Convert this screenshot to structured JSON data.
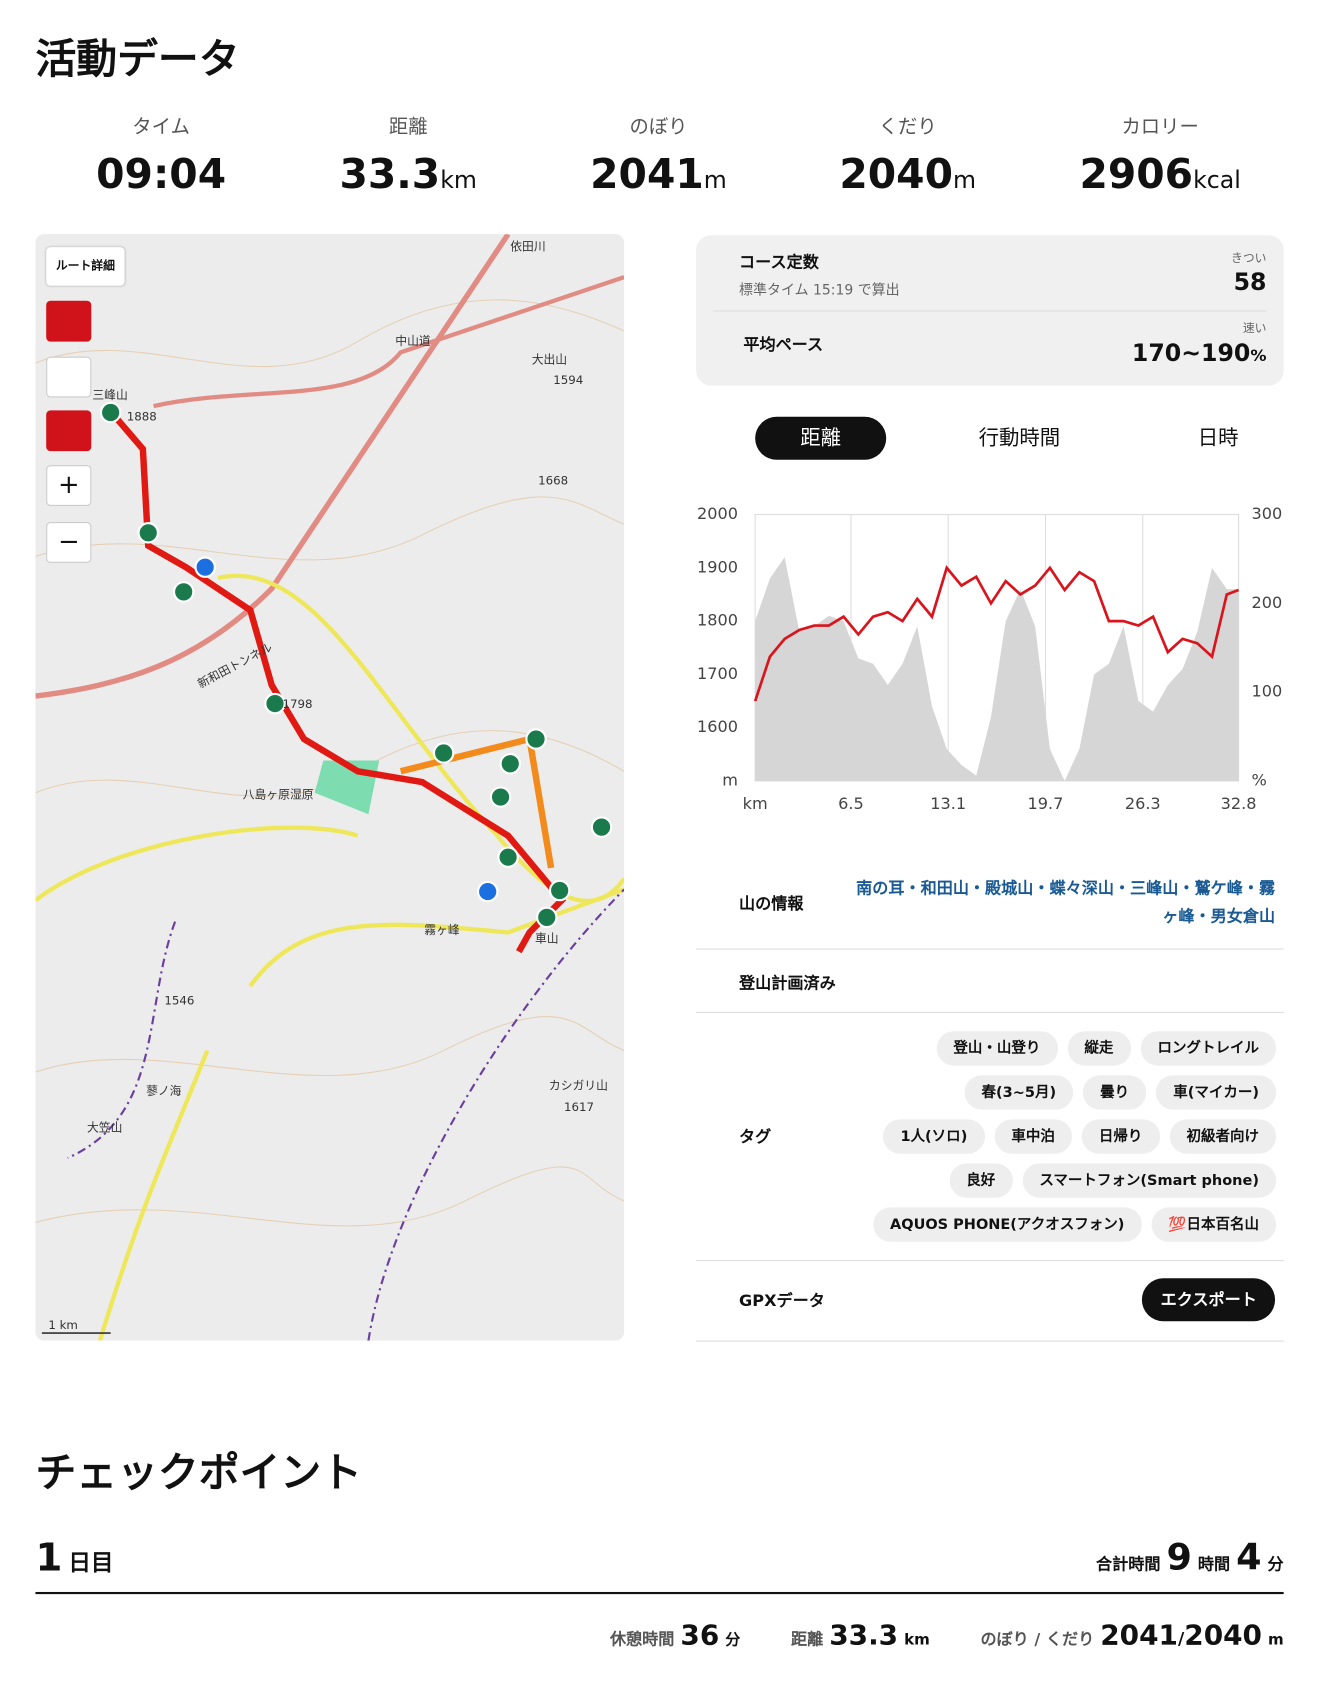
{
  "header": {
    "title": "活動データ"
  },
  "stats": [
    {
      "label": "タイム",
      "value": "09:04"
    },
    {
      "label": "距離",
      "value": 33.3,
      "unit": "km"
    },
    {
      "label": "のぼり",
      "value": 2041,
      "unit": "m"
    },
    {
      "label": "くだり",
      "value": 2040,
      "unit": "m"
    },
    {
      "label": "カロリー",
      "value": 2906,
      "unit": "kcal"
    }
  ],
  "map": {
    "route_detail": "ルート詳細",
    "scale": "1 km",
    "labels": [
      "三峰山",
      "1888",
      "依田川",
      "中山道",
      "大出山",
      "1594",
      "1668",
      "新和田トンネル",
      "1798",
      "八島ヶ原湿原",
      "霧ヶ峰",
      "車山",
      "1546",
      "蓼ノ海",
      "大笠山",
      "カシガリ山",
      "1617"
    ]
  },
  "course_constant": {
    "title": "コース定数",
    "note": "標準タイム 15:19 で算出",
    "rating": "きつい",
    "value": 58
  },
  "average_pace": {
    "title": "平均ペース",
    "rating": "速い",
    "value": "170~190",
    "unit": "%"
  },
  "tabs": [
    "距離",
    "行動時間",
    "日時"
  ],
  "chart_data": {
    "type": "line",
    "x_unit": "km",
    "y_unit": "m",
    "y2_unit": "%",
    "x": [
      0,
      1,
      2,
      3,
      4,
      5,
      6,
      7,
      8,
      9,
      10,
      11,
      12,
      13,
      14,
      15,
      16,
      17,
      18,
      19,
      20,
      21,
      22,
      23,
      24,
      25,
      26,
      27,
      28,
      29,
      30,
      31,
      32,
      32.8
    ],
    "series": [
      {
        "color": "#d6d6d6",
        "values": [
          1800,
          1880,
          1920,
          1780,
          1790,
          1810,
          1800,
          1730,
          1720,
          1680,
          1720,
          1790,
          1640,
          1560,
          1530,
          1510,
          1620,
          1800,
          1860,
          1790,
          1560,
          1500,
          1560,
          1700,
          1720,
          1790,
          1650,
          1630,
          1680,
          1710,
          1780,
          1900,
          1860,
          1860
        ]
      },
      {
        "color": "#d9141c",
        "axis": "y2",
        "values": [
          90,
          140,
          160,
          170,
          175,
          175,
          185,
          165,
          185,
          190,
          180,
          205,
          185,
          240,
          220,
          230,
          200,
          225,
          210,
          220,
          240,
          215,
          235,
          225,
          180,
          180,
          175,
          185,
          145,
          160,
          155,
          140,
          210,
          215
        ]
      }
    ],
    "xlim": [
      0,
      32.8
    ],
    "xticks": [
      6.5,
      13.1,
      19.7,
      26.3,
      32.8
    ],
    "ylim": [
      1500,
      2000
    ],
    "yticks": [
      1600,
      1700,
      1800,
      1900,
      2000
    ],
    "y2lim": [
      0,
      300
    ],
    "y2ticks": [
      100,
      200,
      300
    ],
    "grid": true
  },
  "mountain_info": {
    "label": "山の情報",
    "mountains": "南の耳・和田山・殿城山・蝶々深山・三峰山・鷲ケ峰・霧ヶ峰・男女倉山"
  },
  "plan": {
    "label": "登山計画済み"
  },
  "tags": {
    "label": "タグ",
    "items": [
      "登山・山登り",
      "縦走",
      "ロングトレイル",
      "春(3~5月)",
      "曇り",
      "車(マイカー)",
      "1人(ソロ)",
      "車中泊",
      "日帰り",
      "初級者向け",
      "良好",
      "スマートフォン(Smart phone)",
      "AQUOS PHONE(アクオスフォン)",
      "💯日本百名山"
    ]
  },
  "gpx": {
    "label": "GPXデータ",
    "button": "エクスポート"
  },
  "checkpoint": {
    "title": "チェックポイント",
    "day": 1,
    "day_label": "日目",
    "total_label": "合計時間",
    "hours": 9,
    "hours_unit": "時間",
    "minutes": 4,
    "minutes_unit": "分",
    "rest_label": "休憩時間",
    "rest": 36,
    "rest_unit": "分",
    "distance_label": "距離",
    "distance": 33.3,
    "distance_unit": "km",
    "updown_label": "のぼり / くだり",
    "up": 2041,
    "separator": "/",
    "down": 2040,
    "updown_unit": "m"
  }
}
